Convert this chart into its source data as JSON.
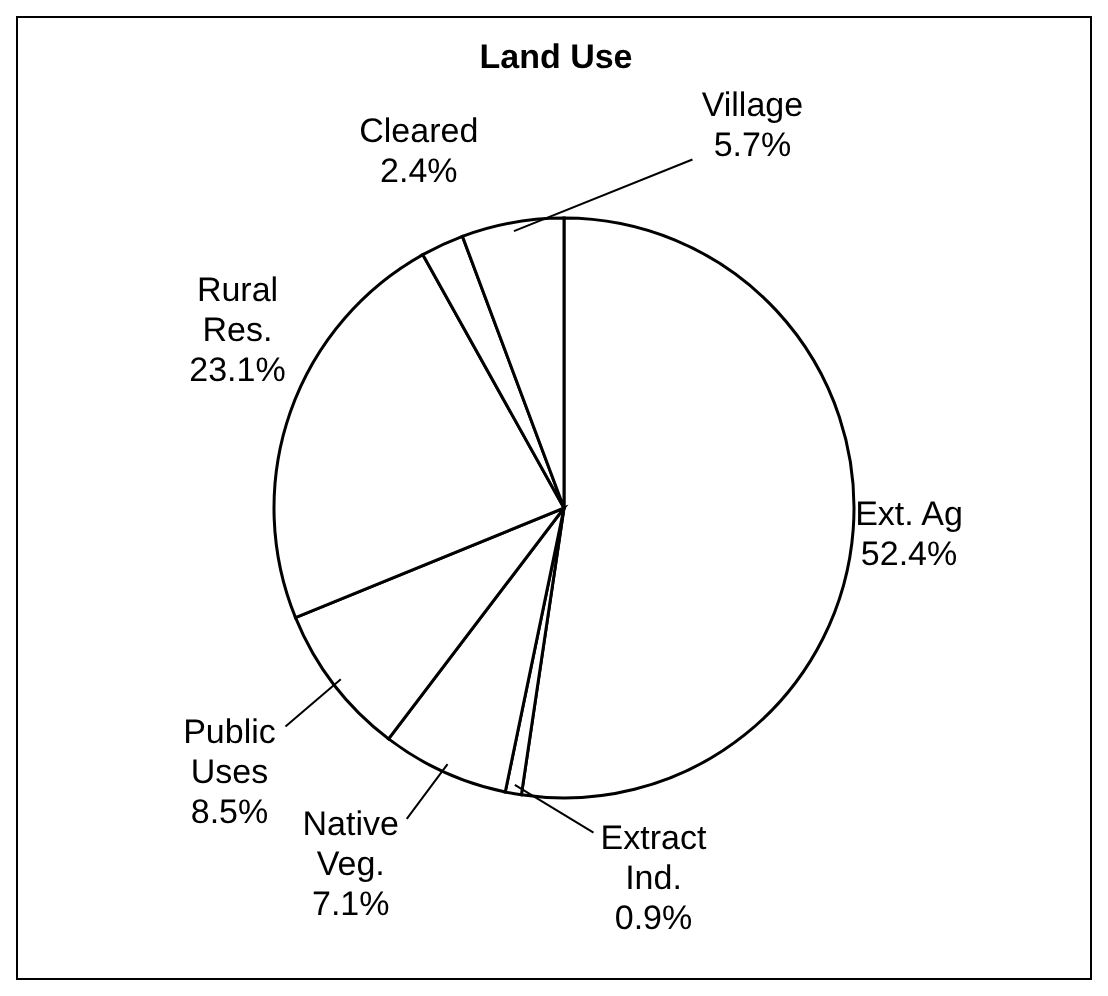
{
  "chart_data": {
    "type": "pie",
    "title": "Land Use",
    "categories": [
      "Ext. Ag",
      "Extract Ind.",
      "Native Veg.",
      "Public Uses",
      "Rural Res.",
      "Cleared",
      "Village"
    ],
    "values": [
      52.4,
      0.9,
      7.1,
      8.5,
      23.1,
      2.4,
      5.7
    ],
    "value_labels": [
      "52.4%",
      "0.9%",
      "7.1%",
      "8.5%",
      "23.1%",
      "2.4%",
      "5.7%"
    ],
    "colors": [
      "#ffffff",
      "#ffffff",
      "#ffffff",
      "#ffffff",
      "#ffffff",
      "#ffffff",
      "#ffffff"
    ],
    "legend": false
  }
}
